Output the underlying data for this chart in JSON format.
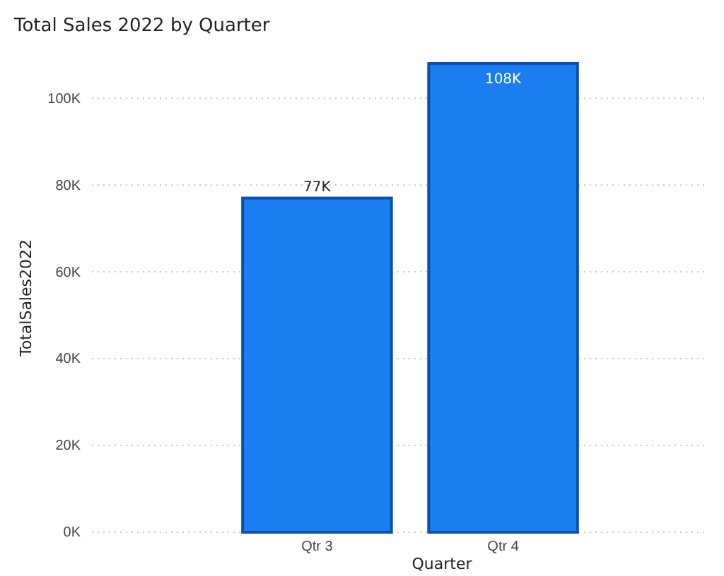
{
  "chart_data": {
    "type": "bar",
    "title": "Total Sales 2022 by Quarter",
    "xlabel": "Quarter",
    "ylabel": "TotalSales2022",
    "categories": [
      "Qtr 3",
      "Qtr 4"
    ],
    "values": [
      77000,
      108000
    ],
    "color": "#1b7ef0",
    "value_labels": [
      "77K",
      "108K"
    ],
    "yticks": [
      {
        "value": 0,
        "label": "0K"
      },
      {
        "value": 20000,
        "label": "20K"
      },
      {
        "value": 40000,
        "label": "40K"
      },
      {
        "value": 60000,
        "label": "60K"
      },
      {
        "value": 80000,
        "label": "80K"
      },
      {
        "value": 100000,
        "label": "100K"
      }
    ],
    "ylim": [
      0,
      108000
    ],
    "grid": "y"
  }
}
